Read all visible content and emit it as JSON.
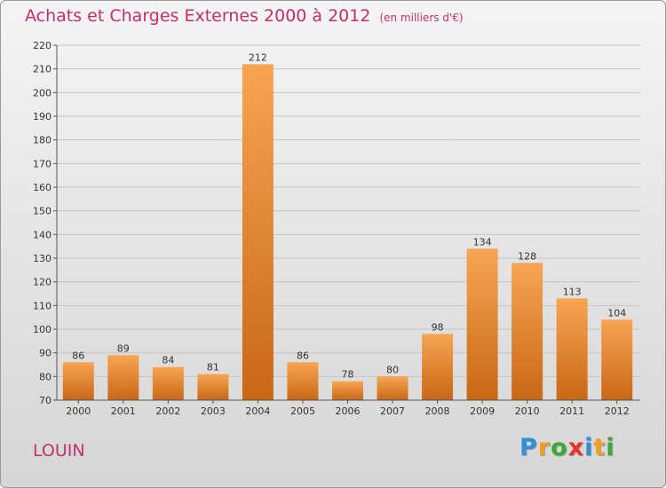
{
  "chart_data": {
    "type": "bar",
    "title": "Achats et Charges Externes 2000 à 2012",
    "subtitle": "(en milliers d'€)",
    "categories": [
      "2000",
      "2001",
      "2002",
      "2003",
      "2004",
      "2005",
      "2006",
      "2007",
      "2008",
      "2009",
      "2010",
      "2011",
      "2012"
    ],
    "values": [
      86,
      89,
      84,
      81,
      212,
      86,
      78,
      80,
      98,
      134,
      128,
      113,
      104
    ],
    "ylim": [
      70,
      220
    ],
    "yticks": [
      70,
      80,
      90,
      100,
      110,
      120,
      130,
      140,
      150,
      160,
      170,
      180,
      190,
      200,
      210,
      220
    ],
    "grid": true,
    "bar_color": "#e8872e"
  },
  "footer": {
    "commune": "LOUIN",
    "logo": {
      "letters": [
        "P",
        "r",
        "o",
        "x",
        "i",
        "t",
        "i"
      ],
      "colors": [
        "#2f8fd8",
        "#f0a020",
        "#3aaa35",
        "#e8332a",
        "#2f8fd8",
        "#f0a020",
        "#3aaa35"
      ]
    }
  }
}
